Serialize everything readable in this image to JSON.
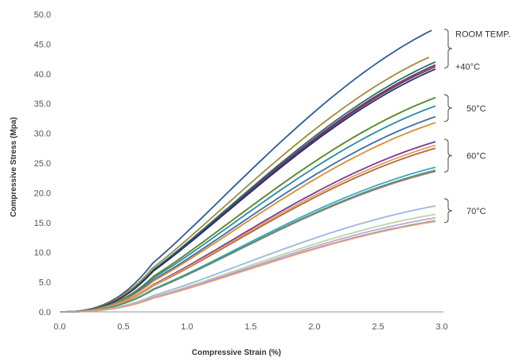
{
  "chart_data": {
    "type": "line",
    "xlabel": "Compressive Strain (%)",
    "ylabel": "Compressive Stress (Mpa)",
    "xlim": [
      0,
      3.0
    ],
    "ylim": [
      0,
      50
    ],
    "x_ticks": [
      "0.0",
      "0.5",
      "1.0",
      "1.5",
      "2.0",
      "2.5",
      "3.0"
    ],
    "y_ticks": [
      "0.0",
      "5.0",
      "10.0",
      "15.0",
      "20.0",
      "25.0",
      "30.0",
      "35.0",
      "40.0",
      "45.0",
      "50.0"
    ],
    "grid": false,
    "legend": "none",
    "group_labels": [
      {
        "text": "ROOM TEMP.",
        "y_range": [
          41,
          47.5
        ]
      },
      {
        "text": "+40°C",
        "y_range": [
          41,
          47.5
        ]
      },
      {
        "text": "50°C",
        "y_range": [
          32,
          36.5
        ]
      },
      {
        "text": "60°C",
        "y_range": [
          23.5,
          29
        ]
      },
      {
        "text": "70°C",
        "y_range": [
          15,
          19
        ]
      }
    ],
    "series": [
      {
        "color": "#2e5b9a",
        "x_end": 2.92,
        "y_end": 47.3
      },
      {
        "color": "#8a2e3c",
        "x_end": 2.95,
        "y_end": 41.5
      },
      {
        "color": "#5b3e8c",
        "x_end": 2.95,
        "y_end": 41.2
      },
      {
        "color": "#1f6e78",
        "x_end": 2.95,
        "y_end": 42.0
      },
      {
        "color": "#a08a3a",
        "x_end": 2.9,
        "y_end": 42.8
      },
      {
        "color": "#2d2d5a",
        "x_end": 2.95,
        "y_end": 40.8
      },
      {
        "color": "#9aae3c",
        "x_end": 2.95,
        "y_end": 36.0
      },
      {
        "color": "#5a8a2e",
        "x_end": 2.95,
        "y_end": 36.0
      },
      {
        "color": "#2a8aa8",
        "x_end": 2.95,
        "y_end": 34.6
      },
      {
        "color": "#3a6ea8",
        "x_end": 2.95,
        "y_end": 32.8
      },
      {
        "color": "#e08a2e",
        "x_end": 2.95,
        "y_end": 31.8
      },
      {
        "color": "#7a3a9a",
        "x_end": 2.95,
        "y_end": 28.6
      },
      {
        "color": "#a86a4a",
        "x_end": 2.95,
        "y_end": 27.5
      },
      {
        "color": "#e8a050",
        "x_end": 2.95,
        "y_end": 28.0
      },
      {
        "color": "#3aa8c8",
        "x_end": 2.95,
        "y_end": 24.3
      },
      {
        "color": "#c86a8a",
        "x_end": 2.95,
        "y_end": 23.6
      },
      {
        "color": "#4a9a6a",
        "x_end": 2.95,
        "y_end": 23.8
      },
      {
        "color": "#9ab8e0",
        "x_end": 2.95,
        "y_end": 17.8
      },
      {
        "color": "#b8d8a0",
        "x_end": 2.95,
        "y_end": 16.4
      },
      {
        "color": "#c8a0d8",
        "x_end": 2.95,
        "y_end": 15.8
      },
      {
        "color": "#3a9aa8",
        "x_end": 2.95,
        "y_end": 15.3
      },
      {
        "color": "#f0a080",
        "x_end": 2.95,
        "y_end": 15.2
      }
    ]
  }
}
